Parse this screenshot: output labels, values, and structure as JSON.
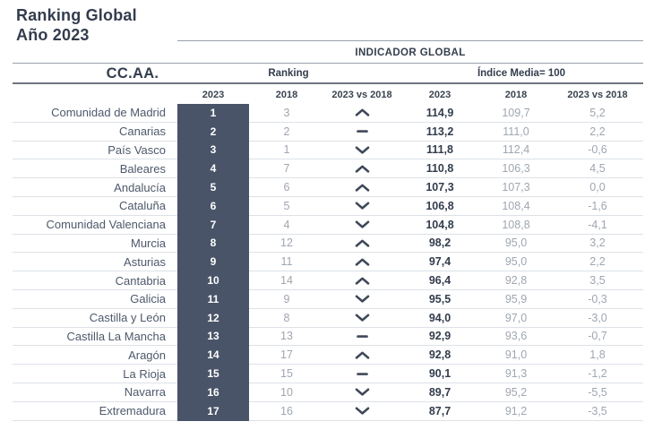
{
  "title": {
    "line1": "Ranking Global",
    "line2": "Año 2023"
  },
  "table": {
    "band_header": "INDICADOR GLOBAL",
    "region_header": "CC.AA.",
    "group_ranking": "Ranking",
    "group_index": "Índice Media= 100",
    "subheaders": {
      "ranking_2023": "2023",
      "ranking_2018": "2018",
      "ranking_diff": "2023 vs 2018",
      "index_2023": "2023",
      "index_2018": "2018",
      "index_diff": "2023 vs 2018"
    }
  },
  "colors": {
    "accent_dark_column": "#4a5468",
    "text_dark": "#333d4e",
    "text_gray": "#9fa6b0",
    "row_line": "#dde2e7",
    "header_line": "#9aa1aa",
    "header_line_dark": "#6e7681"
  },
  "chart_data": {
    "type": "table",
    "title": "Ranking Global Año 2023",
    "band_header": "INDICADOR GLOBAL",
    "column_groups": [
      "Ranking",
      "Índice Media= 100"
    ],
    "columns": [
      "CC.AA.",
      "Ranking 2023",
      "Ranking 2018",
      "Ranking 2023 vs 2018",
      "Índice 2023",
      "Índice 2018",
      "Índice 2023 vs 2018"
    ],
    "trend_legend": {
      "up": "ranking improved (chevron up)",
      "down": "ranking worsened (chevron down)",
      "same": "ranking unchanged (dash)"
    },
    "rows": [
      {
        "region": "Comunidad de Madrid",
        "rank_2023": "1",
        "rank_2018": "3",
        "trend": "up",
        "index_2023": "114,9",
        "index_2018": "109,7",
        "diff": "5,2"
      },
      {
        "region": "Canarias",
        "rank_2023": "2",
        "rank_2018": "2",
        "trend": "same",
        "index_2023": "113,2",
        "index_2018": "111,0",
        "diff": "2,2"
      },
      {
        "region": "País Vasco",
        "rank_2023": "3",
        "rank_2018": "1",
        "trend": "down",
        "index_2023": "111,8",
        "index_2018": "112,4",
        "diff": "-0,6"
      },
      {
        "region": "Baleares",
        "rank_2023": "4",
        "rank_2018": "7",
        "trend": "up",
        "index_2023": "110,8",
        "index_2018": "106,3",
        "diff": "4,5"
      },
      {
        "region": "Andalucía",
        "rank_2023": "5",
        "rank_2018": "6",
        "trend": "up",
        "index_2023": "107,3",
        "index_2018": "107,3",
        "diff": "0,0"
      },
      {
        "region": "Cataluña",
        "rank_2023": "6",
        "rank_2018": "5",
        "trend": "down",
        "index_2023": "106,8",
        "index_2018": "108,4",
        "diff": "-1,6"
      },
      {
        "region": "Comunidad Valenciana",
        "rank_2023": "7",
        "rank_2018": "4",
        "trend": "down",
        "index_2023": "104,8",
        "index_2018": "108,8",
        "diff": "-4,1"
      },
      {
        "region": "Murcia",
        "rank_2023": "8",
        "rank_2018": "12",
        "trend": "up",
        "index_2023": "98,2",
        "index_2018": "95,0",
        "diff": "3,2"
      },
      {
        "region": "Asturias",
        "rank_2023": "9",
        "rank_2018": "11",
        "trend": "up",
        "index_2023": "97,4",
        "index_2018": "95,0",
        "diff": "2,2"
      },
      {
        "region": "Cantabria",
        "rank_2023": "10",
        "rank_2018": "14",
        "trend": "up",
        "index_2023": "96,4",
        "index_2018": "92,8",
        "diff": "3,5"
      },
      {
        "region": "Galicia",
        "rank_2023": "11",
        "rank_2018": "9",
        "trend": "down",
        "index_2023": "95,5",
        "index_2018": "95,9",
        "diff": "-0,3"
      },
      {
        "region": "Castilla y León",
        "rank_2023": "12",
        "rank_2018": "8",
        "trend": "down",
        "index_2023": "94,0",
        "index_2018": "97,0",
        "diff": "-3,0"
      },
      {
        "region": "Castilla La Mancha",
        "rank_2023": "13",
        "rank_2018": "13",
        "trend": "same",
        "index_2023": "92,9",
        "index_2018": "93,6",
        "diff": "-0,7"
      },
      {
        "region": "Aragón",
        "rank_2023": "14",
        "rank_2018": "17",
        "trend": "up",
        "index_2023": "92,8",
        "index_2018": "91,0",
        "diff": "1,8"
      },
      {
        "region": "La Rioja",
        "rank_2023": "15",
        "rank_2018": "15",
        "trend": "same",
        "index_2023": "90,1",
        "index_2018": "91,3",
        "diff": "-1,2"
      },
      {
        "region": "Navarra",
        "rank_2023": "16",
        "rank_2018": "10",
        "trend": "down",
        "index_2023": "89,7",
        "index_2018": "95,2",
        "diff": "-5,5"
      },
      {
        "region": "Extremadura",
        "rank_2023": "17",
        "rank_2018": "16",
        "trend": "down",
        "index_2023": "87,7",
        "index_2018": "91,2",
        "diff": "-3,5"
      }
    ]
  }
}
